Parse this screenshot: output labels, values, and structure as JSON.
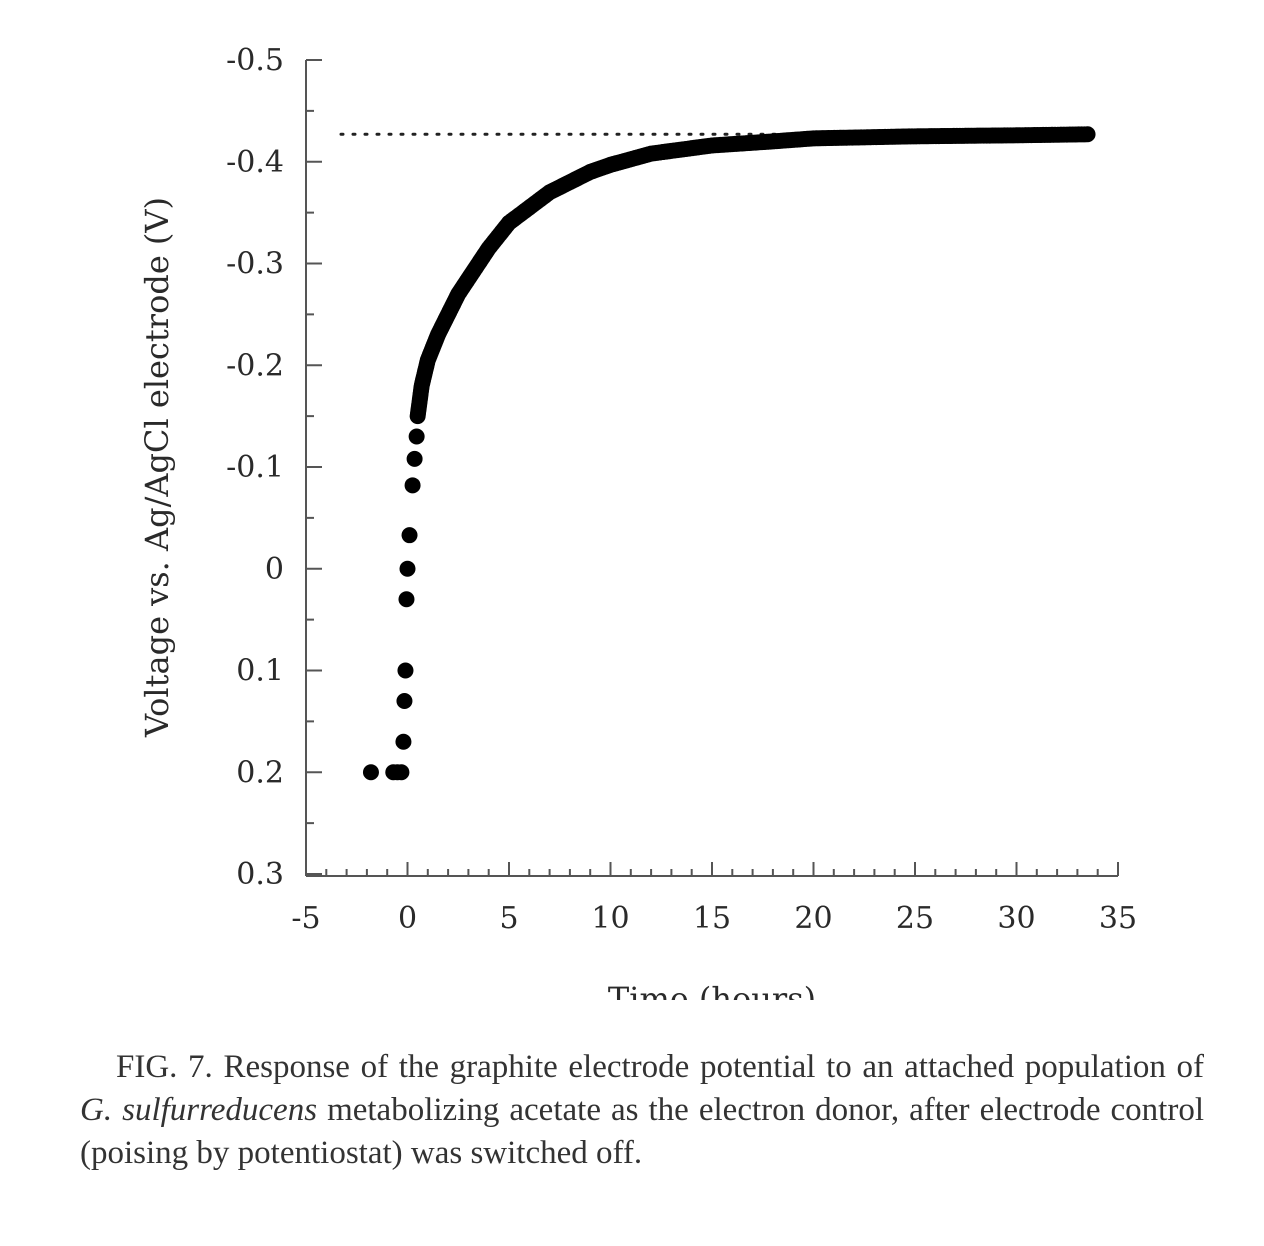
{
  "chart_data": {
    "type": "scatter",
    "xlabel": "Time (hours)",
    "ylabel": "Voltage vs. Ag/AgCl electrode (V)",
    "xlim": [
      -5,
      35
    ],
    "ylim": [
      0.3,
      -0.5
    ],
    "y_axis_inverted": true,
    "x_ticks": [
      "-5",
      "0",
      "5",
      "10",
      "15",
      "20",
      "25",
      "30",
      "35"
    ],
    "y_ticks": [
      "-0.5",
      "-0.4",
      "-0.3",
      "-0.2",
      "-0.1",
      "0",
      "0.1",
      "0.2",
      "0.3"
    ],
    "x_tick_values": [
      -5,
      0,
      5,
      10,
      15,
      20,
      25,
      30,
      35
    ],
    "y_tick_values": [
      -0.5,
      -0.4,
      -0.3,
      -0.2,
      -0.1,
      0,
      0.1,
      0.2,
      0.3
    ],
    "reference_line": {
      "y": -0.427,
      "style": "dotted",
      "x_range": [
        -5,
        33.5
      ]
    },
    "discrete_points": [
      {
        "x": -1.8,
        "y": 0.2
      },
      {
        "x": -0.7,
        "y": 0.2
      },
      {
        "x": -0.5,
        "y": 0.2
      },
      {
        "x": -0.3,
        "y": 0.2
      },
      {
        "x": -0.2,
        "y": 0.17
      },
      {
        "x": -0.15,
        "y": 0.13
      },
      {
        "x": -0.1,
        "y": 0.1
      },
      {
        "x": -0.05,
        "y": 0.03
      },
      {
        "x": 0.0,
        "y": 0.0
      },
      {
        "x": 0.1,
        "y": -0.033
      },
      {
        "x": 0.25,
        "y": -0.082
      },
      {
        "x": 0.35,
        "y": -0.108
      },
      {
        "x": 0.45,
        "y": -0.13
      }
    ],
    "dense_series": {
      "x": [
        0.5,
        0.7,
        1.0,
        1.5,
        2.0,
        2.5,
        3.0,
        3.5,
        4.0,
        5.0,
        6.0,
        7.0,
        8.0,
        9.0,
        10.0,
        12.0,
        15.0,
        18.0,
        20.0,
        25.0,
        30.0,
        33.5
      ],
      "y": [
        -0.15,
        -0.18,
        -0.205,
        -0.23,
        -0.25,
        -0.27,
        -0.285,
        -0.3,
        -0.315,
        -0.34,
        -0.355,
        -0.37,
        -0.38,
        -0.39,
        -0.397,
        -0.408,
        -0.416,
        -0.42,
        -0.423,
        -0.425,
        -0.426,
        -0.427
      ]
    },
    "marker_color": "#000000"
  },
  "caption": {
    "prefix": "FIG. 7. Response of the graphite electrode potential to an attached population of",
    "organism": "G. sulfurreducens",
    "suffix": "metabolizing acetate as the electron donor, after electrode control (poising by potentiostat) was switched off."
  }
}
